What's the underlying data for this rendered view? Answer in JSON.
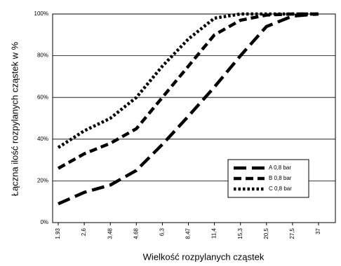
{
  "chart_data": {
    "type": "line",
    "x_label": "Wielkość rozpylanych cząstek",
    "y_label": "Łączna ilość rozpylanych cząstek w %",
    "categories": [
      "1,93",
      "2,6",
      "3,48",
      "4,68",
      "6,3",
      "8,47",
      "11,4",
      "15,3",
      "20,5",
      "27,5",
      "37"
    ],
    "series": [
      {
        "name": "A 0,8 bar",
        "color": "#000000",
        "line_style": "long-dash",
        "values": [
          9,
          14.5,
          18,
          25,
          37.5,
          51,
          65,
          80,
          94,
          99,
          100
        ]
      },
      {
        "name": "B 0,8 bar",
        "color": "#000000",
        "line_style": "dash",
        "values": [
          26,
          33,
          38,
          45,
          60,
          75,
          90,
          97,
          99.5,
          100,
          100
        ]
      },
      {
        "name": "C 0,8 bar",
        "color": "#000000",
        "line_style": "dot",
        "values": [
          36,
          44,
          50,
          60,
          75,
          88,
          98,
          100,
          100,
          100,
          100
        ]
      }
    ],
    "ylim": [
      0,
      100
    ],
    "yticks": [
      {
        "value": 0,
        "label": "0%"
      },
      {
        "value": 20,
        "label": "20%"
      },
      {
        "value": 40,
        "label": "40%"
      },
      {
        "value": 60,
        "label": "60%"
      },
      {
        "value": 80,
        "label": "80%"
      },
      {
        "value": 100,
        "label": "100%"
      }
    ],
    "grid": true,
    "legend": "lower-right"
  }
}
